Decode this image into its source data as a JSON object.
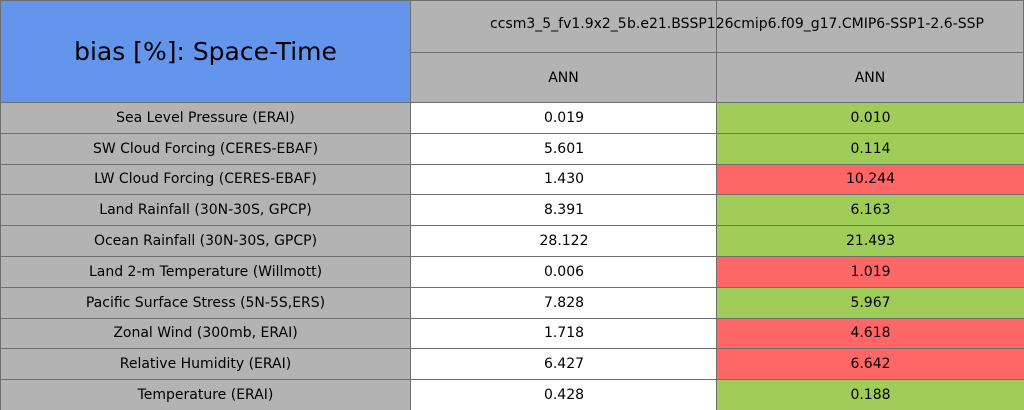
{
  "table": {
    "title": "bias [%]: Space-Time",
    "columns": [
      "ccsm3_5_fv1.9x2_5",
      "b.e21.BSSP126cmip6.f09_g17.CMIP6-SSP1-2.6-SSP"
    ],
    "periods": [
      "ANN",
      "ANN"
    ],
    "rows": [
      {
        "label": "Sea Level Pressure (ERAI)",
        "values": [
          "0.019",
          "0.010"
        ],
        "colors": [
          "#ffffff",
          "#a0cc5a"
        ]
      },
      {
        "label": "SW Cloud Forcing (CERES-EBAF)",
        "values": [
          "5.601",
          "0.114"
        ],
        "colors": [
          "#ffffff",
          "#a0cc5a"
        ]
      },
      {
        "label": "LW Cloud Forcing (CERES-EBAF)",
        "values": [
          "1.430",
          "10.244"
        ],
        "colors": [
          "#ffffff",
          "#ff6666"
        ]
      },
      {
        "label": "Land Rainfall (30N-30S, GPCP)",
        "values": [
          "8.391",
          "6.163"
        ],
        "colors": [
          "#ffffff",
          "#a0cc5a"
        ]
      },
      {
        "label": "Ocean Rainfall (30N-30S, GPCP)",
        "values": [
          "28.122",
          "21.493"
        ],
        "colors": [
          "#ffffff",
          "#a0cc5a"
        ]
      },
      {
        "label": "Land 2-m Temperature (Willmott)",
        "values": [
          "0.006",
          "1.019"
        ],
        "colors": [
          "#ffffff",
          "#ff6666"
        ]
      },
      {
        "label": "Pacific Surface Stress (5N-5S,ERS)",
        "values": [
          "7.828",
          "5.967"
        ],
        "colors": [
          "#ffffff",
          "#a0cc5a"
        ]
      },
      {
        "label": "Zonal Wind (300mb, ERAI)",
        "values": [
          "1.718",
          "4.618"
        ],
        "colors": [
          "#ffffff",
          "#ff6666"
        ]
      },
      {
        "label": "Relative Humidity (ERAI)",
        "values": [
          "6.427",
          "6.642"
        ],
        "colors": [
          "#ffffff",
          "#ff6666"
        ]
      },
      {
        "label": "Temperature (ERAI)",
        "values": [
          "0.428",
          "0.188"
        ],
        "colors": [
          "#ffffff",
          "#a0cc5a"
        ]
      }
    ]
  }
}
